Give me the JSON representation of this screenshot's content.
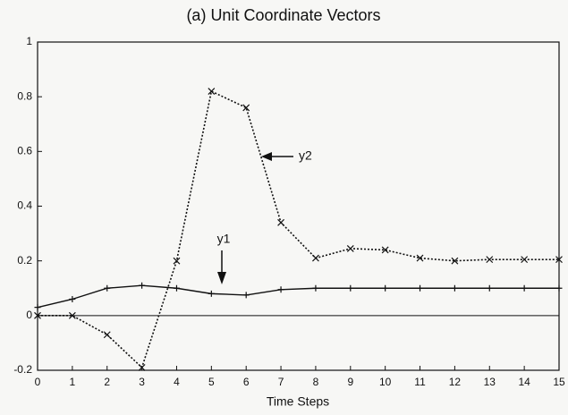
{
  "chart_data": {
    "type": "line",
    "title": "(a) Unit Coordinate Vectors",
    "xlabel": "Time Steps",
    "x": [
      0,
      1,
      2,
      3,
      4,
      5,
      6,
      7,
      8,
      9,
      10,
      11,
      12,
      13,
      14,
      15
    ],
    "series": [
      {
        "name": "y1",
        "color": "#111111",
        "style": "solid",
        "marker": "+",
        "values": [
          0.03,
          0.06,
          0.1,
          0.11,
          0.1,
          0.08,
          0.075,
          0.095,
          0.1,
          0.1,
          0.1,
          0.1,
          0.1,
          0.1,
          0.1,
          0.1
        ]
      },
      {
        "name": "y2",
        "color": "#111111",
        "style": "dotted",
        "marker": "x",
        "values": [
          0,
          0,
          -0.07,
          -0.19,
          0.2,
          0.82,
          0.76,
          0.34,
          0.21,
          0.245,
          0.24,
          0.21,
          0.2,
          0.205,
          0.205,
          0.205
        ]
      }
    ],
    "xlim": [
      0,
      15
    ],
    "xticks": [
      0,
      1,
      2,
      3,
      4,
      5,
      6,
      7,
      8,
      9,
      10,
      11,
      12,
      13,
      14,
      15
    ],
    "ylim": [
      -0.2,
      1
    ],
    "yticks": [
      -0.2,
      0,
      0.2,
      0.4,
      0.6,
      0.8,
      1
    ],
    "zero_line": true,
    "grid": false
  }
}
